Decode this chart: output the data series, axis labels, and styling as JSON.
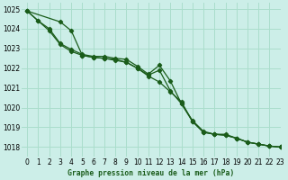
{
  "title": "Graphe pression niveau de la mer (hPa)",
  "background_color": "#cceee8",
  "grid_color": "#aaddcc",
  "line_color": "#1a5c1a",
  "xlim": [
    -0.5,
    23
  ],
  "ylim": [
    1017.5,
    1025.3
  ],
  "yticks": [
    1018,
    1019,
    1020,
    1021,
    1022,
    1023,
    1024,
    1025
  ],
  "xticks": [
    0,
    1,
    2,
    3,
    4,
    5,
    6,
    7,
    8,
    9,
    10,
    11,
    12,
    13,
    14,
    15,
    16,
    17,
    18,
    19,
    20,
    21,
    22,
    23
  ],
  "s1x": [
    0,
    1,
    2,
    3,
    4,
    5,
    6,
    7,
    8,
    9,
    10,
    11,
    12,
    13,
    14,
    15,
    16,
    17,
    18,
    19,
    20,
    21,
    22,
    23
  ],
  "s1y": [
    1024.9,
    1024.4,
    1023.9,
    1023.2,
    1022.85,
    1022.65,
    1022.55,
    1022.5,
    1022.4,
    1022.3,
    1022.0,
    1021.6,
    1021.3,
    1020.8,
    1020.3,
    1019.3,
    1018.75,
    1018.65,
    1018.6,
    1018.45,
    1018.25,
    1018.15,
    1018.05,
    1018.0
  ],
  "s2x": [
    0,
    1,
    2,
    3,
    4,
    5,
    6,
    7,
    8,
    9,
    10,
    11,
    12,
    13,
    14,
    15,
    16,
    17,
    18,
    19,
    20,
    21,
    22,
    23
  ],
  "s2y": [
    1024.9,
    1024.4,
    1024.0,
    1023.25,
    1022.95,
    1022.7,
    1022.6,
    1022.6,
    1022.5,
    1022.45,
    1022.1,
    1021.7,
    1022.15,
    1021.35,
    1020.2,
    1019.35,
    1018.8,
    1018.65,
    1018.6,
    1018.45,
    1018.25,
    1018.15,
    1018.05,
    1018.0
  ],
  "s3x": [
    0,
    3,
    4,
    5,
    6,
    7,
    8,
    9,
    10,
    11,
    12,
    13,
    14,
    15,
    16,
    17,
    18,
    19,
    20,
    21,
    22,
    23
  ],
  "s3y": [
    1024.9,
    1024.35,
    1023.9,
    1022.65,
    1022.55,
    1022.5,
    1022.45,
    1022.3,
    1022.0,
    1021.65,
    1021.9,
    1020.85,
    1020.2,
    1019.3,
    1018.75,
    1018.65,
    1018.65,
    1018.45,
    1018.25,
    1018.15,
    1018.05,
    1018.0
  ],
  "marker": "D",
  "marker_size": 2.2,
  "line_width": 0.9,
  "tick_fontsize": 5.5,
  "label_fontsize": 5.8
}
